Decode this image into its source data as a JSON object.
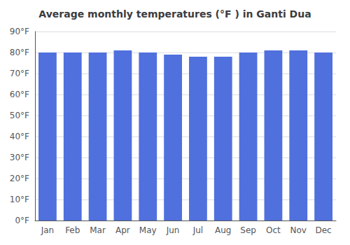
{
  "chart_data": {
    "type": "bar",
    "title": "Average monthly temperatures (°F ) in Ganti Dua",
    "categories": [
      "Jan",
      "Feb",
      "Mar",
      "Apr",
      "May",
      "Jun",
      "Jul",
      "Aug",
      "Sep",
      "Oct",
      "Nov",
      "Dec"
    ],
    "values": [
      80,
      80,
      80,
      81,
      80,
      79,
      78,
      78,
      80,
      81,
      81,
      80
    ],
    "ylim": [
      0,
      90
    ],
    "yticks": [
      {
        "value": 0,
        "label": "0°F"
      },
      {
        "value": 10,
        "label": "10°F"
      },
      {
        "value": 20,
        "label": "20°F"
      },
      {
        "value": 30,
        "label": "30°F"
      },
      {
        "value": 40,
        "label": "40°F"
      },
      {
        "value": 50,
        "label": "50°F"
      },
      {
        "value": 60,
        "label": "60°F"
      },
      {
        "value": 70,
        "label": "70°F"
      },
      {
        "value": 80,
        "label": "80°F"
      },
      {
        "value": 90,
        "label": "90°F"
      }
    ],
    "grid": true
  }
}
